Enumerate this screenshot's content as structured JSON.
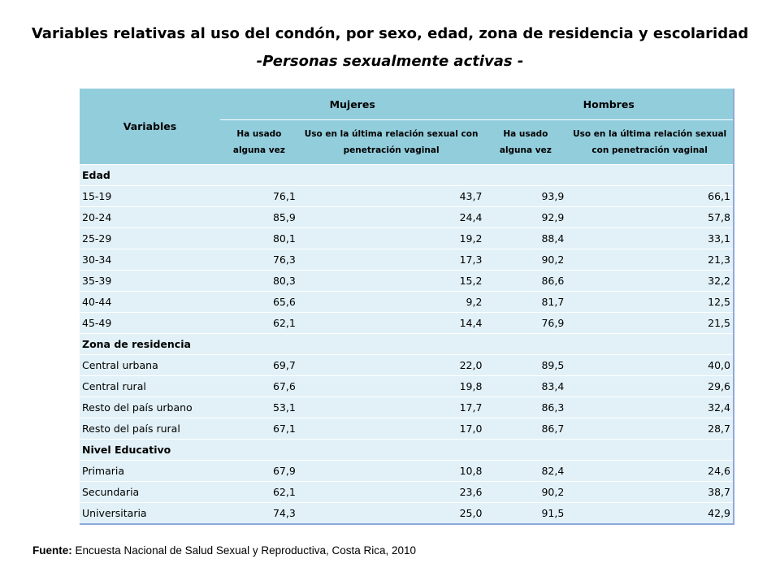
{
  "title": "Variables relativas al uso del condón, por sexo, edad, zona de residencia y escolaridad",
  "subtitle": "-Personas sexualmente activas -",
  "table": {
    "variables_header": "Variables",
    "group_headers": [
      "Mujeres",
      "Hombres"
    ],
    "sub_headers": [
      "Ha usado alguna vez",
      "Uso en la última relación sexual con penetración vaginal",
      "Ha usado alguna vez",
      "Uso en la última relación sexual con penetración vaginal"
    ],
    "sections": [
      {
        "name": "Edad",
        "rows": [
          {
            "label": "15-19",
            "values": [
              "76,1",
              "43,7",
              "93,9",
              "66,1"
            ]
          },
          {
            "label": "20-24",
            "values": [
              "85,9",
              "24,4",
              "92,9",
              "57,8"
            ]
          },
          {
            "label": "25-29",
            "values": [
              "80,1",
              "19,2",
              "88,4",
              "33,1"
            ]
          },
          {
            "label": "30-34",
            "values": [
              "76,3",
              "17,3",
              "90,2",
              "21,3"
            ]
          },
          {
            "label": "35-39",
            "values": [
              "80,3",
              "15,2",
              "86,6",
              "32,2"
            ]
          },
          {
            "label": "40-44",
            "values": [
              "65,6",
              "9,2",
              "81,7",
              "12,5"
            ]
          },
          {
            "label": "45-49",
            "values": [
              "62,1",
              "14,4",
              "76,9",
              "21,5"
            ]
          }
        ]
      },
      {
        "name": "Zona de residencia",
        "rows": [
          {
            "label": "Central urbana",
            "values": [
              "69,7",
              "22,0",
              "89,5",
              "40,0"
            ]
          },
          {
            "label": "Central rural",
            "values": [
              "67,6",
              "19,8",
              "83,4",
              "29,6"
            ]
          },
          {
            "label": "Resto del país urbano",
            "values": [
              "53,1",
              "17,7",
              "86,3",
              "32,4"
            ]
          },
          {
            "label": "Resto del país rural",
            "values": [
              "67,1",
              "17,0",
              "86,7",
              "28,7"
            ]
          }
        ]
      },
      {
        "name": "Nivel Educativo",
        "rows": [
          {
            "label": "Primaria",
            "values": [
              "67,9",
              "10,8",
              "82,4",
              "24,6"
            ]
          },
          {
            "label": "Secundaria",
            "values": [
              "62,1",
              "23,6",
              "90,2",
              "38,7"
            ]
          },
          {
            "label": "Universitaria",
            "values": [
              "74,3",
              "25,0",
              "91,5",
              "42,9"
            ]
          }
        ]
      }
    ]
  },
  "source": {
    "label": "Fuente:",
    "text": "Encuesta Nacional de Salud Sexual y Reproductiva, Costa Rica, 2010"
  },
  "colors": {
    "header_bg": "#92cddc",
    "row_bg": "#e1f1f7",
    "border": "#8eaadb"
  }
}
